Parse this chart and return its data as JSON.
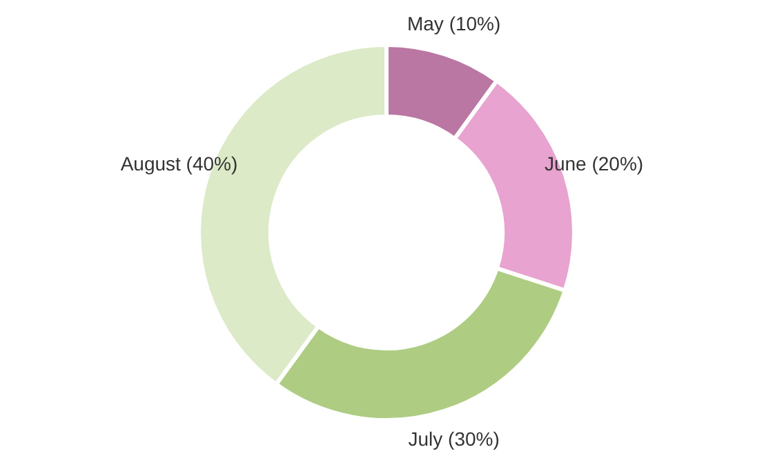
{
  "chart_data": {
    "type": "donut",
    "categories": [
      "May (10%)",
      "June (20%)",
      "July (30%)",
      "August (40%)"
    ],
    "values": [
      10,
      20,
      30,
      40
    ],
    "colors": [
      "#bb77a3",
      "#e9a3d0",
      "#aecd82",
      "#dceac8"
    ]
  }
}
